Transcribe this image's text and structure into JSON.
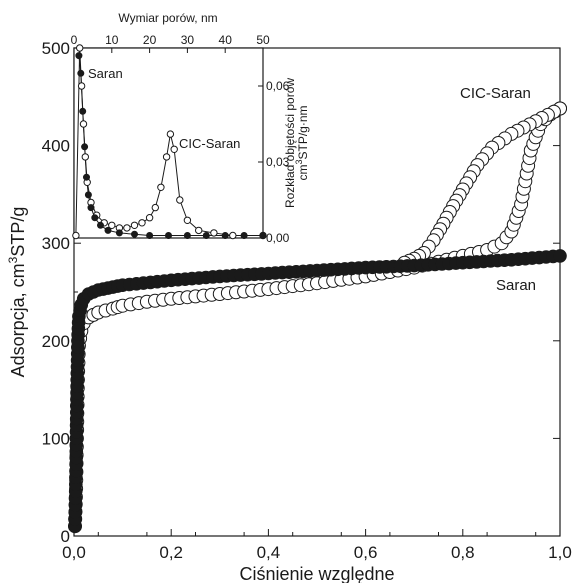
{
  "chart_data": [
    {
      "panel": "main",
      "type": "scatter",
      "xlabel": "Ciśnienie względne",
      "ylabel_main": "Adsorpcja, cm",
      "ylabel_sup": "3",
      "ylabel_tail": "STP/g",
      "xlim": [
        0,
        1.0
      ],
      "ylim": [
        0,
        500
      ],
      "xticks": [
        "0,0",
        "0,2",
        "0,4",
        "0,6",
        "0,8",
        "1,0"
      ],
      "yticks": [
        "0",
        "100",
        "200",
        "300",
        "400",
        "500"
      ],
      "series": [
        {
          "name": "CIC-Saran",
          "marker": "open-circle",
          "adsorption_branch": [
            [
              0.002,
              10
            ],
            [
              0.004,
              40
            ],
            [
              0.006,
              100
            ],
            [
              0.008,
              160
            ],
            [
              0.01,
              195
            ],
            [
              0.015,
              210
            ],
            [
              0.02,
              218
            ],
            [
              0.03,
              224
            ],
            [
              0.05,
              229
            ],
            [
              0.08,
              233
            ],
            [
              0.1,
              236
            ],
            [
              0.15,
              240
            ],
            [
              0.2,
              243
            ],
            [
              0.3,
              248
            ],
            [
              0.4,
              253
            ],
            [
              0.5,
              259
            ],
            [
              0.6,
              266
            ],
            [
              0.7,
              275
            ],
            [
              0.75,
              281
            ],
            [
              0.8,
              287
            ],
            [
              0.85,
              293
            ],
            [
              0.88,
              300
            ],
            [
              0.9,
              312
            ],
            [
              0.92,
              340
            ],
            [
              0.94,
              395
            ],
            [
              0.96,
              422
            ],
            [
              0.98,
              432
            ],
            [
              1.0,
              438
            ]
          ],
          "desorption_branch": [
            [
              1.0,
              438
            ],
            [
              0.95,
              425
            ],
            [
              0.9,
              412
            ],
            [
              0.86,
              398
            ],
            [
              0.83,
              380
            ],
            [
              0.8,
              355
            ],
            [
              0.78,
              338
            ],
            [
              0.76,
              320
            ],
            [
              0.74,
              303
            ],
            [
              0.72,
              290
            ],
            [
              0.7,
              284
            ],
            [
              0.68,
              280
            ]
          ]
        },
        {
          "name": "Saran",
          "marker": "filled-circle",
          "points": [
            [
              0.002,
              10
            ],
            [
              0.004,
              60
            ],
            [
              0.006,
              140
            ],
            [
              0.008,
              200
            ],
            [
              0.01,
              225
            ],
            [
              0.015,
              237
            ],
            [
              0.02,
              243
            ],
            [
              0.03,
              248
            ],
            [
              0.05,
              252
            ],
            [
              0.08,
              255
            ],
            [
              0.1,
              257
            ],
            [
              0.2,
              262
            ],
            [
              0.3,
              266
            ],
            [
              0.4,
              269
            ],
            [
              0.5,
              272
            ],
            [
              0.6,
              275
            ],
            [
              0.7,
              277
            ],
            [
              0.8,
              280
            ],
            [
              0.9,
              283
            ],
            [
              1.0,
              287
            ]
          ]
        }
      ]
    },
    {
      "panel": "inset",
      "type": "line",
      "xlabel": "Wymiar porów, nm",
      "ylabel_line1": "Rozkład objętości porów",
      "ylabel_line2_main": "cm",
      "ylabel_line2_sup": "3",
      "ylabel_line2_tail": "STP/g·nm",
      "xlim": [
        0,
        50
      ],
      "ylim": [
        0,
        0.075
      ],
      "xticks": [
        "0",
        "10",
        "20",
        "30",
        "40",
        "50"
      ],
      "yticks": [
        "0,00",
        "0,03",
        "0,06"
      ],
      "series": [
        {
          "name": "Saran",
          "marker": "filled-circle",
          "points": [
            [
              1.3,
              0.072
            ],
            [
              1.8,
              0.065
            ],
            [
              2.3,
              0.05
            ],
            [
              2.8,
              0.036
            ],
            [
              3.3,
              0.024
            ],
            [
              3.8,
              0.017
            ],
            [
              4.5,
              0.012
            ],
            [
              5.5,
              0.008
            ],
            [
              7,
              0.005
            ],
            [
              9,
              0.003
            ],
            [
              12,
              0.002
            ],
            [
              16,
              0.0015
            ],
            [
              20,
              0.001
            ],
            [
              25,
              0.001
            ],
            [
              30,
              0.001
            ],
            [
              35,
              0.001
            ],
            [
              40,
              0.001
            ],
            [
              45,
              0.001
            ],
            [
              50,
              0.001
            ]
          ]
        },
        {
          "name": "CIC-Saran",
          "marker": "open-circle",
          "points": [
            [
              0.5,
              0.001
            ],
            [
              1.5,
              0.075
            ],
            [
              2.0,
              0.06
            ],
            [
              2.5,
              0.045
            ],
            [
              3.0,
              0.032
            ],
            [
              3.5,
              0.022
            ],
            [
              4.5,
              0.014
            ],
            [
              6,
              0.009
            ],
            [
              8,
              0.006
            ],
            [
              10,
              0.005
            ],
            [
              12,
              0.004
            ],
            [
              14,
              0.004
            ],
            [
              16,
              0.005
            ],
            [
              18,
              0.006
            ],
            [
              20,
              0.008
            ],
            [
              21.5,
              0.012
            ],
            [
              23,
              0.02
            ],
            [
              24.5,
              0.032
            ],
            [
              25.5,
              0.041
            ],
            [
              26.5,
              0.035
            ],
            [
              28,
              0.015
            ],
            [
              30,
              0.007
            ],
            [
              33,
              0.003
            ],
            [
              37,
              0.002
            ],
            [
              42,
              0.001
            ],
            [
              50,
              0.001
            ]
          ]
        }
      ]
    }
  ]
}
